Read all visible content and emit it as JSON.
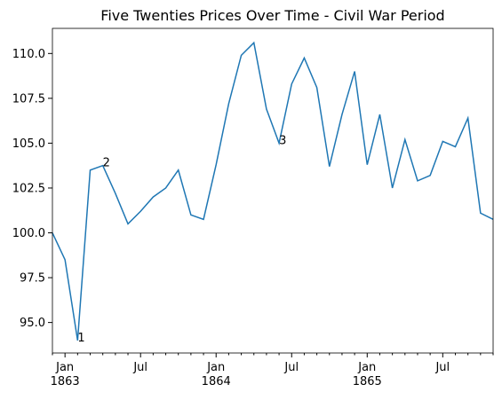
{
  "chart_data": {
    "type": "line",
    "title": "Five Twenties Prices Over Time - Civil War Period",
    "x": [
      "1862-12",
      "1863-01",
      "1863-02",
      "1863-03",
      "1863-04",
      "1863-05",
      "1863-06",
      "1863-07",
      "1863-08",
      "1863-09",
      "1863-10",
      "1863-11",
      "1863-12",
      "1864-01",
      "1864-02",
      "1864-03",
      "1864-04",
      "1864-05",
      "1864-06",
      "1864-07",
      "1864-08",
      "1864-09",
      "1864-10",
      "1864-11",
      "1864-12",
      "1865-01",
      "1865-02",
      "1865-03",
      "1865-04",
      "1865-05",
      "1865-06",
      "1865-07",
      "1865-08",
      "1865-09",
      "1865-10",
      "1865-11"
    ],
    "series": [
      {
        "color": "#1f77b4",
        "values": [
          100.0,
          98.5,
          94.0,
          103.5,
          103.75,
          102.2,
          100.5,
          101.2,
          102.0,
          102.5,
          103.5,
          101.0,
          100.75,
          103.8,
          107.2,
          109.9,
          110.6,
          106.9,
          105.0,
          108.3,
          109.75,
          108.1,
          103.7,
          106.6,
          109.0,
          103.8,
          106.6,
          102.5,
          105.2,
          102.9,
          103.2,
          105.1,
          104.8,
          106.4,
          101.1,
          100.75
        ]
      }
    ],
    "xlim": [
      "1862-12",
      "1865-11"
    ],
    "xticks": [
      {
        "value": "1863-01",
        "label": "Jan\n1863"
      },
      {
        "value": "1863-07",
        "label": "Jul"
      },
      {
        "value": "1864-01",
        "label": "Jan\n1864"
      },
      {
        "value": "1864-07",
        "label": "Jul"
      },
      {
        "value": "1865-01",
        "label": "Jan\n1865"
      },
      {
        "value": "1865-07",
        "label": "Jul"
      }
    ],
    "ylim": [
      93.3,
      111.4
    ],
    "yticks": [
      {
        "value": 95,
        "label": "95.0"
      },
      {
        "value": 97.5,
        "label": "97.5"
      },
      {
        "value": 100,
        "label": "100.0"
      },
      {
        "value": 102.5,
        "label": "102.5"
      },
      {
        "value": 105,
        "label": "105.0"
      },
      {
        "value": 107.5,
        "label": "107.5"
      },
      {
        "value": 110,
        "label": "110.0"
      }
    ],
    "annotations": [
      {
        "text": "1",
        "x": "1863-02",
        "y": 94.0
      },
      {
        "text": "2",
        "x": "1863-04",
        "y": 103.75
      },
      {
        "text": "3",
        "x": "1864-06",
        "y": 105.0
      }
    ],
    "grid": false
  }
}
